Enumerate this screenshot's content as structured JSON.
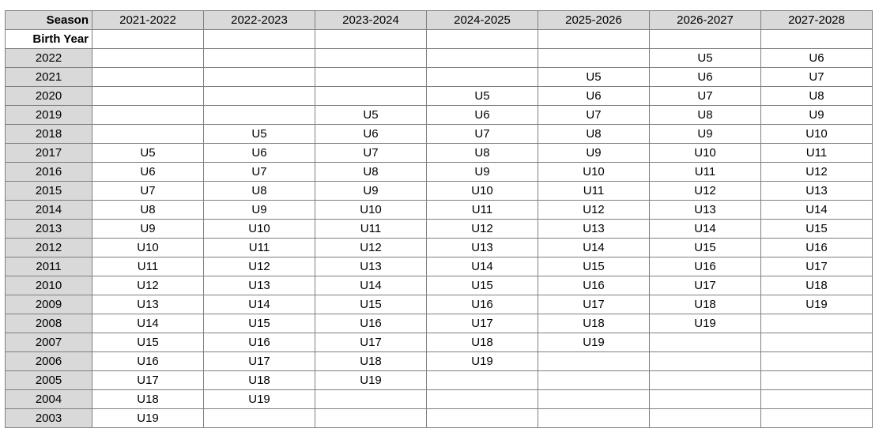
{
  "table": {
    "corner_label": "Season",
    "row_header_label": "Birth Year",
    "seasons": [
      "2021-2022",
      "2022-2023",
      "2023-2024",
      "2024-2025",
      "2025-2026",
      "2026-2027",
      "2027-2028"
    ],
    "rows": [
      {
        "year": "2022",
        "cells": [
          null,
          null,
          null,
          null,
          null,
          "U5",
          "U6"
        ]
      },
      {
        "year": "2021",
        "cells": [
          null,
          null,
          null,
          null,
          "U5",
          "U6",
          "U7"
        ]
      },
      {
        "year": "2020",
        "cells": [
          null,
          null,
          null,
          "U5",
          "U6",
          "U7",
          "U8"
        ]
      },
      {
        "year": "2019",
        "cells": [
          null,
          null,
          "U5",
          "U6",
          "U7",
          "U8",
          "U9"
        ]
      },
      {
        "year": "2018",
        "cells": [
          null,
          "U5",
          "U6",
          "U7",
          "U8",
          "U9",
          "U10"
        ]
      },
      {
        "year": "2017",
        "cells": [
          "U5",
          "U6",
          "U7",
          "U8",
          "U9",
          "U10",
          "U11"
        ]
      },
      {
        "year": "2016",
        "cells": [
          "U6",
          "U7",
          "U8",
          "U9",
          "U10",
          "U11",
          "U12"
        ]
      },
      {
        "year": "2015",
        "cells": [
          "U7",
          "U8",
          "U9",
          "U10",
          "U11",
          "U12",
          "U13"
        ]
      },
      {
        "year": "2014",
        "cells": [
          "U8",
          "U9",
          "U10",
          "U11",
          "U12",
          "U13",
          "U14"
        ]
      },
      {
        "year": "2013",
        "cells": [
          "U9",
          "U10",
          "U11",
          "U12",
          "U13",
          "U14",
          "U15"
        ]
      },
      {
        "year": "2012",
        "cells": [
          "U10",
          "U11",
          "U12",
          "U13",
          "U14",
          "U15",
          "U16"
        ]
      },
      {
        "year": "2011",
        "cells": [
          "U11",
          "U12",
          "U13",
          "U14",
          "U15",
          "U16",
          "U17"
        ]
      },
      {
        "year": "2010",
        "cells": [
          "U12",
          "U13",
          "U14",
          "U15",
          "U16",
          "U17",
          "U18"
        ]
      },
      {
        "year": "2009",
        "cells": [
          "U13",
          "U14",
          "U15",
          "U16",
          "U17",
          "U18",
          "U19"
        ]
      },
      {
        "year": "2008",
        "cells": [
          "U14",
          "U15",
          "U16",
          "U17",
          "U18",
          "U19",
          null
        ]
      },
      {
        "year": "2007",
        "cells": [
          "U15",
          "U16",
          "U17",
          "U18",
          "U19",
          null,
          null
        ]
      },
      {
        "year": "2006",
        "cells": [
          "U16",
          "U17",
          "U18",
          "U19",
          null,
          null,
          null
        ]
      },
      {
        "year": "2005",
        "cells": [
          "U17",
          "U18",
          "U19",
          null,
          null,
          null,
          null
        ]
      },
      {
        "year": "2004",
        "cells": [
          "U18",
          "U19",
          null,
          null,
          null,
          null,
          null
        ]
      },
      {
        "year": "2003",
        "cells": [
          "U19",
          null,
          null,
          null,
          null,
          null,
          null
        ]
      }
    ]
  }
}
